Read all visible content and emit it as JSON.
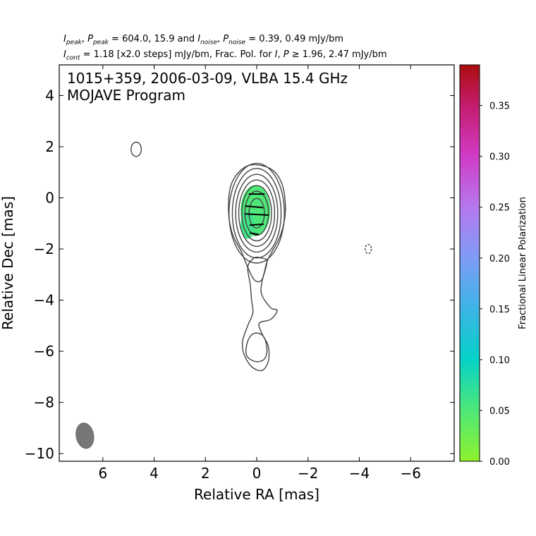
{
  "header": {
    "line1": {
      "i_peak": "I",
      "i_peak_sub": "peak",
      "sep1": ", ",
      "p_peak": "P",
      "p_peak_sub": "peak",
      "mid": " = 604.0, 15.9 and ",
      "i_noise": "I",
      "i_noise_sub": "noise",
      "sep2": ", ",
      "p_noise": "P",
      "p_noise_sub": "noise",
      "tail": " = 0.39, 0.49 mJy/bm"
    },
    "line2": {
      "i_cont": "I",
      "i_cont_sub": "cont",
      "mid": " = 1.18 [x2.0 steps] mJy/bm, Frac. Pol. for ",
      "i": "I",
      "sep": ", ",
      "p": "P",
      "tail": " ≥  1.96, 2.47 mJy/bm"
    }
  },
  "plot_title": {
    "line1": "1015+359, 2006-03-09, VLBA 15.4 GHz",
    "line2": "MOJAVE Program"
  },
  "chart_data": {
    "type": "contour",
    "source": "1015+359",
    "date": "2006-03-09",
    "instrument": "VLBA 15.4 GHz",
    "xlabel": "Relative RA [mas]",
    "ylabel": "Relative Dec [mas]",
    "xlim": [
      7.7,
      -7.7
    ],
    "ylim": [
      -10.3,
      5.2
    ],
    "x_ticks": [
      "6",
      "4",
      "2",
      "0",
      "−2",
      "−4",
      "−6"
    ],
    "x_tick_values": [
      6,
      4,
      2,
      0,
      -2,
      -4,
      -6
    ],
    "y_ticks": [
      "4",
      "2",
      "0",
      "−2",
      "−4",
      "−6",
      "−8",
      "−10"
    ],
    "y_tick_values": [
      4,
      2,
      0,
      -2,
      -4,
      -6,
      -8,
      -10
    ],
    "i_peak_mjy_bm": 604.0,
    "p_peak_mjy_bm": 15.9,
    "i_noise_mjy_bm": 0.39,
    "p_noise_mjy_bm": 0.49,
    "i_cont_mjy_bm": 1.18,
    "contour_step_factor": 2.0,
    "frac_pol_i_threshold_mjy_bm": 1.96,
    "frac_pol_p_threshold_mjy_bm": 2.47,
    "core_center": {
      "x": 0.0,
      "y": -0.6
    },
    "core_contours": [
      {
        "rx": 1.08,
        "ry": 1.95
      },
      {
        "rx": 0.95,
        "ry": 1.75
      },
      {
        "rx": 0.82,
        "ry": 1.52
      },
      {
        "rx": 0.7,
        "ry": 1.3
      },
      {
        "rx": 0.58,
        "ry": 1.08
      },
      {
        "rx": 0.46,
        "ry": 0.86
      },
      {
        "rx": 0.3,
        "ry": 0.58
      }
    ],
    "outer_contour": [
      [
        0.1,
        1.3
      ],
      [
        0.6,
        1.1
      ],
      [
        1.0,
        0.5
      ],
      [
        1.1,
        -0.5
      ],
      [
        0.95,
        -1.4
      ],
      [
        0.6,
        -2.1
      ],
      [
        0.4,
        -2.6
      ],
      [
        0.1,
        -3.2
      ],
      [
        -0.2,
        -3.2
      ],
      [
        -0.4,
        -2.5
      ],
      [
        -0.6,
        -2.1
      ],
      [
        -0.95,
        -1.4
      ],
      [
        -1.12,
        -0.5
      ],
      [
        -1.0,
        0.5
      ],
      [
        -0.6,
        1.1
      ],
      [
        0.1,
        1.3
      ]
    ],
    "jet_contour": [
      [
        -0.4,
        -2.5
      ],
      [
        -0.2,
        -3.3
      ],
      [
        -0.2,
        -3.8
      ],
      [
        -0.55,
        -4.3
      ],
      [
        -0.8,
        -4.4
      ],
      [
        -0.55,
        -4.75
      ],
      [
        -0.1,
        -4.9
      ],
      [
        -0.2,
        -5.3
      ],
      [
        -0.45,
        -5.8
      ],
      [
        -0.45,
        -6.4
      ],
      [
        -0.2,
        -6.75
      ],
      [
        0.2,
        -6.6
      ],
      [
        0.5,
        -6.1
      ],
      [
        0.55,
        -5.6
      ],
      [
        0.35,
        -5.0
      ],
      [
        0.15,
        -4.5
      ],
      [
        0.2,
        -4.0
      ],
      [
        0.25,
        -3.4
      ],
      [
        0.35,
        -2.7
      ],
      [
        0.1,
        -2.35
      ],
      [
        -0.15,
        -2.35
      ],
      [
        -0.4,
        -2.5
      ]
    ],
    "jet_inner_contour": [
      [
        0.1,
        -5.3
      ],
      [
        -0.25,
        -5.4
      ],
      [
        -0.4,
        -5.9
      ],
      [
        -0.3,
        -6.3
      ],
      [
        0.05,
        -6.4
      ],
      [
        0.4,
        -6.15
      ],
      [
        0.35,
        -5.6
      ],
      [
        0.1,
        -5.3
      ]
    ],
    "isolated_contours": [
      {
        "x": 4.7,
        "y": 1.9,
        "rx": 0.2,
        "ry": 0.28,
        "dashed": false
      },
      {
        "x": -4.35,
        "y": -2.0,
        "rx": 0.12,
        "ry": 0.18,
        "dashed": true
      }
    ],
    "fractional_polarization_regions": [
      {
        "x": 0.05,
        "y": -0.5,
        "rx": 0.58,
        "ry": 1.0,
        "value": 0.05
      },
      {
        "x": 0.35,
        "y": -1.05,
        "rx": 0.28,
        "ry": 0.55,
        "value": 0.06
      }
    ],
    "evpa_vectors": [
      {
        "x": 0.0,
        "y": 0.15,
        "length": 0.62,
        "angle_deg": 0
      },
      {
        "x": 0.1,
        "y": -0.35,
        "length": 0.7,
        "angle_deg": 5
      },
      {
        "x": 0.0,
        "y": -0.65,
        "length": 0.95,
        "angle_deg": 3
      },
      {
        "x": 0.0,
        "y": -1.05,
        "length": 0.55,
        "angle_deg": -4
      },
      {
        "x": 0.1,
        "y": -1.4,
        "length": 0.35,
        "angle_deg": 10
      }
    ],
    "beam": {
      "x": 6.7,
      "y": -9.3,
      "major_mas": 1.0,
      "minor_mas": 0.68,
      "pa_deg": -10
    },
    "colorbar": {
      "label": "Fractional Linear Polarization",
      "min": 0.0,
      "max": 0.39,
      "ticks": [
        "0.00",
        "0.05",
        "0.10",
        "0.15",
        "0.20",
        "0.25",
        "0.30",
        "0.35"
      ],
      "tick_values": [
        0.0,
        0.05,
        0.1,
        0.15,
        0.2,
        0.25,
        0.3,
        0.35
      ],
      "colormap": [
        {
          "v": 0.0,
          "color": "#8ef22c"
        },
        {
          "v": 0.05,
          "color": "#4ee878"
        },
        {
          "v": 0.1,
          "color": "#06d2c8"
        },
        {
          "v": 0.15,
          "color": "#3cb4e6"
        },
        {
          "v": 0.2,
          "color": "#7e9cf6"
        },
        {
          "v": 0.25,
          "color": "#b678ee"
        },
        {
          "v": 0.3,
          "color": "#d03cc6"
        },
        {
          "v": 0.35,
          "color": "#c41c6e"
        },
        {
          "v": 0.39,
          "color": "#aa0e0e"
        }
      ]
    },
    "contour_color": "#444444"
  }
}
